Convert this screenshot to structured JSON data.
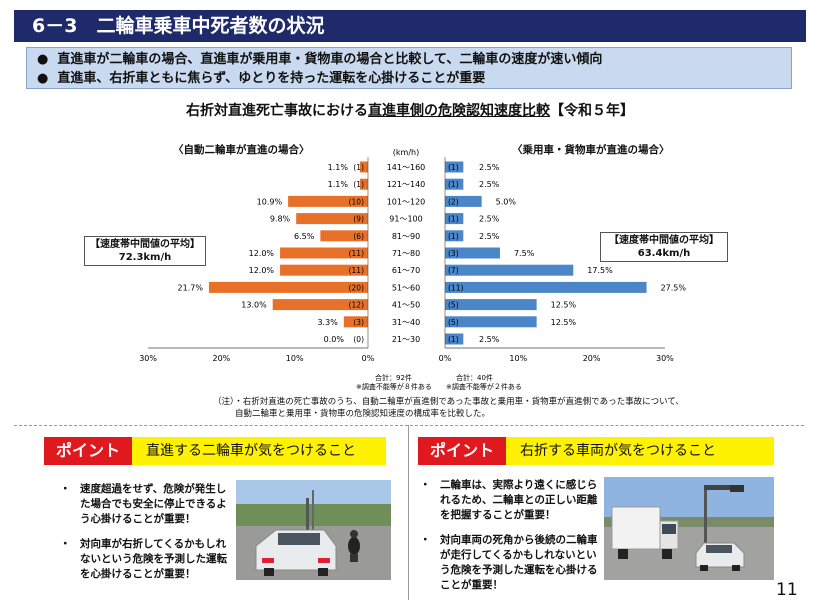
{
  "header": {
    "title": "6－3　二輪車乗車中死者数の状況"
  },
  "summary": [
    "直進車が二輪車の場合、直進車が乗用車・貨物車の場合と比較して、二輪車の速度が速い傾向",
    "直進車、右折車ともに焦らず、ゆとりを持った運転を心掛けることが重要"
  ],
  "summary_bullets": [
    "●",
    "●"
  ],
  "chart_data": {
    "type": "bar",
    "title": "右折対直進死亡事故における直進車側の危険認知速度比較【令和５年】",
    "title_plain": "右折対直進死亡事故における",
    "title_underlined": "直進車側の危険認知速度比較",
    "title_suffix": "【令和５年】",
    "unit_label": "(km/h)",
    "categories": [
      "141～160",
      "121～140",
      "101～120",
      "91～100",
      "81～90",
      "71～80",
      "61～70",
      "51～60",
      "41～50",
      "31～40",
      "21～30"
    ],
    "series": [
      {
        "name": "〈自動二輪車が直進の場合〉",
        "color": "#e8712a",
        "percent": [
          1.1,
          1.1,
          10.9,
          9.8,
          6.5,
          12.0,
          12.0,
          21.7,
          13.0,
          3.3,
          0.0
        ],
        "percent_labels": [
          "1.1%",
          "1.1%",
          "10.9%",
          "9.8%",
          "6.5%",
          "12.0%",
          "12.0%",
          "21.7%",
          "13.0%",
          "3.3%",
          "0.0%"
        ],
        "count_labels": [
          "(1)",
          "(1)",
          "(10)",
          "(9)",
          "(6)",
          "(11)",
          "(11)",
          "(20)",
          "(12)",
          "(3)",
          "(0)"
        ],
        "avg_label": "【速度帯中間値の平均】",
        "avg_value": "72.3km/h",
        "total": "合計：92件",
        "unknown_note": "※調査不能等が８件ある"
      },
      {
        "name": "〈乗用車・貨物車が直進の場合〉",
        "color": "#4a86c8",
        "percent": [
          2.5,
          2.5,
          5.0,
          2.5,
          2.5,
          7.5,
          17.5,
          27.5,
          12.5,
          12.5,
          2.5
        ],
        "percent_labels": [
          "2.5%",
          "2.5%",
          "5.0%",
          "2.5%",
          "2.5%",
          "7.5%",
          "17.5%",
          "27.5%",
          "12.5%",
          "12.5%",
          "2.5%"
        ],
        "count_labels": [
          "(1)",
          "(1)",
          "(2)",
          "(1)",
          "(1)",
          "(3)",
          "(7)",
          "(11)",
          "(5)",
          "(5)",
          "(1)"
        ],
        "avg_label": "【速度帯中間値の平均】",
        "avg_value": "63.4km/h",
        "total": "合計：40件",
        "unknown_note": "※調査不能等が２件ある"
      }
    ],
    "xlim": [
      0,
      30
    ],
    "left_ticks": [
      "30%",
      "20%",
      "10%",
      "0%"
    ],
    "right_ticks": [
      "0%",
      "10%",
      "20%",
      "30%"
    ],
    "legend": "none",
    "grid": false
  },
  "note": {
    "line1": "（注）・右折対直進の死亡事故のうち、自動二輪車が直進側であった事故と乗用車・貨物車が直進側であった事故について、",
    "line2": "自動二輪車と乗用車・貨物車の危険認知速度の構成率を比較した。"
  },
  "points": [
    {
      "tag": "ポイント",
      "heading": "直進する二輪車が気をつけること",
      "bullet": "・",
      "tips": [
        "速度超過をせず、危険が発生した場合でも安全に停止できるよう心掛けることが重要！",
        "対向車が右折してくるかもしれないという危険を予測した運転を心掛けることが重要！"
      ]
    },
    {
      "tag": "ポイント",
      "heading": "右折する車両が気をつけること",
      "bullet": "・",
      "tips": [
        "二輪車は、実際より遠くに感じられるため、二輪車との正しい距離を把握することが重要！",
        "対向車両の死角から後続の二輪車が走行してくるかもしれないという危険を予測した運転を心掛けることが重要！"
      ]
    }
  ],
  "page_number": "11"
}
